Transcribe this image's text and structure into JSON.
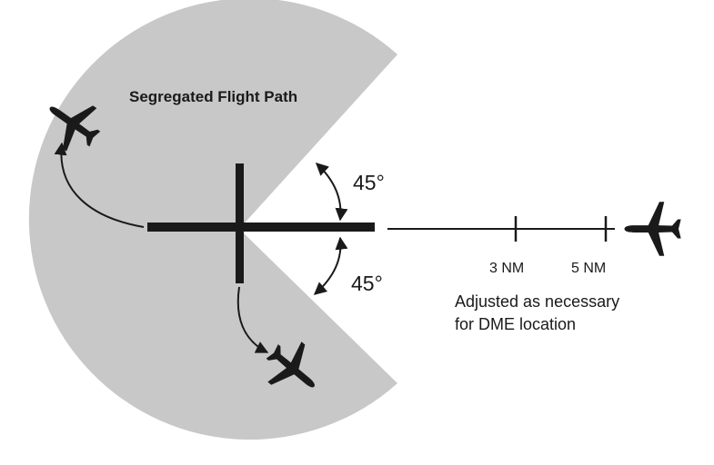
{
  "labels": {
    "segregated_path": "Segregated Flight Path",
    "angle_upper": "45°",
    "angle_lower": "45°",
    "dist_3": "3 NM",
    "dist_5": "5 NM",
    "note_line1": "Adjusted as necessary",
    "note_line2": "for DME location"
  },
  "colors": {
    "sector_fill": "#c8c8c8",
    "ink": "#1a1a1a"
  },
  "icons": [
    "airplane-icon"
  ]
}
